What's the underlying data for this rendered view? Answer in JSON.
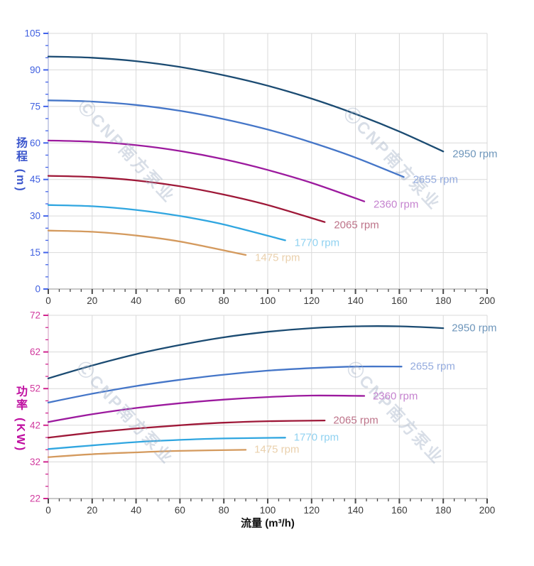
{
  "watermark": {
    "text": "ⒸCNP南方泵业"
  },
  "x_axis": {
    "title": "流量 (m³/h)",
    "major_ticks": [
      0,
      20,
      40,
      60,
      80,
      100,
      120,
      140,
      160,
      180,
      200
    ],
    "minor_divisions": 4,
    "xlim": [
      0,
      200
    ],
    "tick_label_color": "#3a3a3a",
    "axis_line_color": "#a6a6a6",
    "tick_color": "#4a4a4a",
    "grid_color": "#d9d9d9"
  },
  "charts": {
    "head": {
      "axis_title": "扬程 (m)"
    },
    "power": {
      "axis_title": "功率 (KW)"
    }
  },
  "chart_data": [
    {
      "id": "head",
      "type": "line",
      "title": "",
      "xlabel": "流量 (m³/h)",
      "ylabel": "扬程 (m)",
      "xlim": [
        0,
        200
      ],
      "ylim": [
        0,
        105
      ],
      "y_major_ticks": [
        0,
        15,
        30,
        45,
        60,
        75,
        90,
        105
      ],
      "minor_divisions": 3,
      "grid": true,
      "legend_position": "curve-end-labels",
      "tick_label_color": "#4060e0",
      "tick_color": "#4263eb",
      "axis_line_color": "#a9b2d8",
      "series": [
        {
          "name": "2950 rpm",
          "color": "#1b4b72",
          "label_color": "#6e96bb",
          "x": [
            0,
            20,
            40,
            60,
            80,
            100,
            120,
            140,
            160,
            180
          ],
          "y": [
            95.5,
            95.0,
            93.6,
            91.2,
            87.8,
            83.5,
            78.2,
            71.9,
            64.7,
            56.5
          ]
        },
        {
          "name": "2655 rpm",
          "color": "#4576c8",
          "label_color": "#94abde",
          "x": [
            0,
            20,
            40,
            60,
            80,
            100,
            120,
            140,
            162
          ],
          "y": [
            77.5,
            77.0,
            75.6,
            73.2,
            69.8,
            65.5,
            60.2,
            54.0,
            46.0
          ]
        },
        {
          "name": "2360 rpm",
          "color": "#9c1a9e",
          "label_color": "#c583cf",
          "x": [
            0,
            20,
            40,
            60,
            80,
            100,
            120,
            144
          ],
          "y": [
            61.0,
            60.5,
            59.1,
            56.7,
            53.3,
            48.9,
            43.6,
            36.0
          ]
        },
        {
          "name": "2065 rpm",
          "color": "#9e1838",
          "label_color": "#bd7389",
          "x": [
            0,
            20,
            40,
            60,
            80,
            100,
            126
          ],
          "y": [
            46.5,
            46.0,
            44.6,
            42.2,
            38.8,
            34.5,
            27.5
          ]
        },
        {
          "name": "1770 rpm",
          "color": "#30a6e0",
          "label_color": "#90d2f1",
          "x": [
            0,
            20,
            40,
            60,
            80,
            108
          ],
          "y": [
            34.5,
            34.0,
            32.5,
            30.0,
            26.5,
            20.0
          ]
        },
        {
          "name": "1475 rpm",
          "color": "#d49a5e",
          "label_color": "#ead0ac",
          "x": [
            0,
            20,
            40,
            60,
            90
          ],
          "y": [
            24.0,
            23.5,
            22.0,
            19.5,
            14.0
          ]
        }
      ]
    },
    {
      "id": "power",
      "type": "line",
      "title": "",
      "xlabel": "流量 (m³/h)",
      "ylabel": "功率 (KW)",
      "xlim": [
        0,
        200
      ],
      "ylim": [
        22,
        72
      ],
      "y_major_ticks": [
        22,
        32,
        42,
        52,
        62,
        72
      ],
      "minor_divisions": 3,
      "grid": true,
      "legend_position": "curve-end-labels",
      "tick_label_color": "#d13a9e",
      "tick_color": "#d1258f",
      "axis_line_color": "#d8a9c8",
      "series": [
        {
          "name": "2950 rpm",
          "color": "#1b4b72",
          "label_color": "#6e96bb",
          "x": [
            0,
            20,
            40,
            60,
            80,
            100,
            120,
            140,
            160,
            180
          ],
          "y": [
            54.8,
            58.3,
            61.4,
            63.9,
            66.0,
            67.5,
            68.5,
            69.0,
            69.0,
            68.5
          ]
        },
        {
          "name": "2655 rpm",
          "color": "#4576c8",
          "label_color": "#94abde",
          "x": [
            0,
            20,
            40,
            60,
            80,
            100,
            120,
            140,
            161
          ],
          "y": [
            48.2,
            50.6,
            52.7,
            54.4,
            55.8,
            56.9,
            57.6,
            58.0,
            58.0
          ]
        },
        {
          "name": "2360 rpm",
          "color": "#9c1a9e",
          "label_color": "#c583cf",
          "x": [
            0,
            20,
            40,
            60,
            80,
            100,
            120,
            144
          ],
          "y": [
            42.9,
            45.0,
            46.7,
            48.0,
            49.0,
            49.7,
            50.1,
            50.0
          ]
        },
        {
          "name": "2065 rpm",
          "color": "#9e1838",
          "label_color": "#bd7389",
          "x": [
            0,
            20,
            40,
            60,
            80,
            100,
            126
          ],
          "y": [
            38.6,
            40.0,
            41.1,
            42.0,
            42.7,
            43.1,
            43.3
          ]
        },
        {
          "name": "1770 rpm",
          "color": "#30a6e0",
          "label_color": "#90d2f1",
          "x": [
            0,
            20,
            40,
            60,
            80,
            108
          ],
          "y": [
            35.5,
            36.5,
            37.4,
            38.0,
            38.4,
            38.6
          ]
        },
        {
          "name": "1475 rpm",
          "color": "#d49a5e",
          "label_color": "#ead0ac",
          "x": [
            0,
            20,
            40,
            60,
            90
          ],
          "y": [
            33.3,
            34.1,
            34.6,
            35.0,
            35.3
          ]
        }
      ]
    }
  ]
}
